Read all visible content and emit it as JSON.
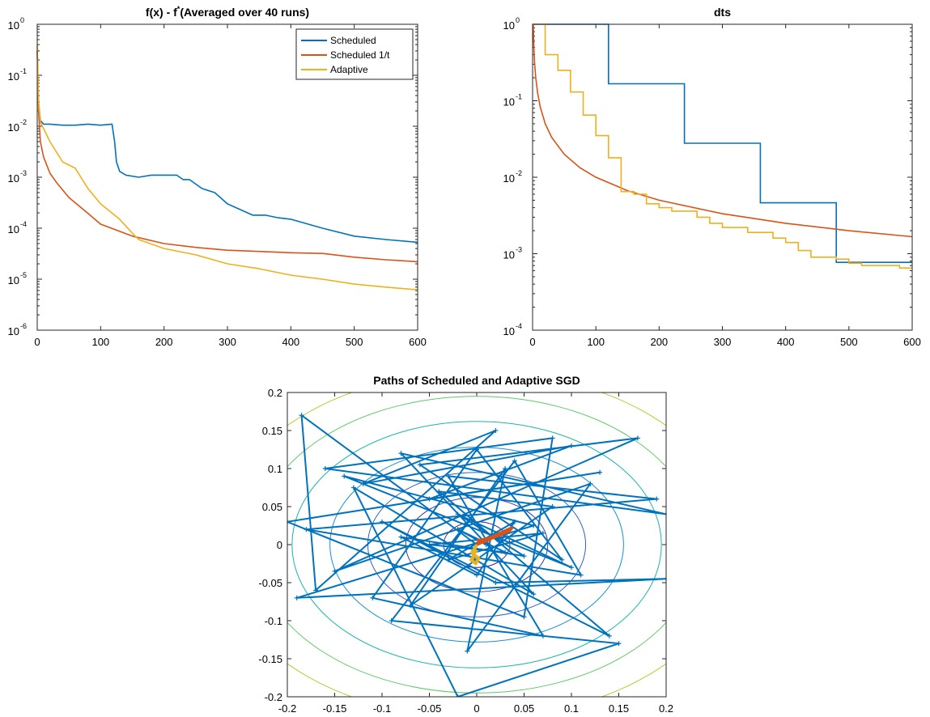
{
  "chart_data": [
    {
      "type": "line",
      "title": "f(x) - f*(Averaged over 40 runs)",
      "title_parts": {
        "main": "f(x) - f",
        "superscript": "*",
        "tail": "(Averaged over 40 runs)"
      },
      "xlim": [
        0,
        600
      ],
      "ylim": [
        1e-06,
        1
      ],
      "yscale": "log",
      "xticks": [
        "0",
        "100",
        "200",
        "300",
        "400",
        "500",
        "600"
      ],
      "yticks": [
        {
          "base": "10",
          "exp": "-6"
        },
        {
          "base": "10",
          "exp": "-5"
        },
        {
          "base": "10",
          "exp": "-4"
        },
        {
          "base": "10",
          "exp": "-3"
        },
        {
          "base": "10",
          "exp": "-2"
        },
        {
          "base": "10",
          "exp": "-1"
        },
        {
          "base": "10",
          "exp": "0"
        }
      ],
      "grid": false,
      "legend_position": "top-right",
      "series": [
        {
          "name": "Scheduled",
          "color": "#0072BD",
          "x": [
            0,
            2,
            5,
            10,
            20,
            40,
            60,
            80,
            100,
            118,
            122,
            125,
            130,
            140,
            160,
            180,
            200,
            220,
            230,
            240,
            260,
            280,
            300,
            340,
            360,
            380,
            400,
            450,
            500,
            550,
            600
          ],
          "y": [
            0.3,
            0.03,
            0.013,
            0.011,
            0.011,
            0.0105,
            0.0105,
            0.011,
            0.0105,
            0.011,
            0.005,
            0.002,
            0.0013,
            0.0011,
            0.001,
            0.0011,
            0.0011,
            0.0011,
            0.0009,
            0.0009,
            0.0006,
            0.0005,
            0.0003,
            0.00018,
            0.00018,
            0.00016,
            0.00015,
            0.0001,
            7e-05,
            6e-05,
            5.3e-05
          ]
        },
        {
          "name": "Scheduled 1/t",
          "color": "#D95319",
          "x": [
            0,
            2,
            5,
            10,
            20,
            30,
            50,
            75,
            100,
            150,
            200,
            250,
            300,
            350,
            400,
            450,
            500,
            550,
            600
          ],
          "y": [
            0.3,
            0.02,
            0.005,
            0.0025,
            0.0012,
            0.0008,
            0.0004,
            0.00022,
            0.00012,
            7e-05,
            5e-05,
            4.2e-05,
            3.7e-05,
            3.5e-05,
            3.3e-05,
            3.2e-05,
            2.7e-05,
            2.4e-05,
            2.2e-05
          ]
        },
        {
          "name": "Adaptive",
          "color": "#EDB120",
          "x": [
            0,
            2,
            5,
            10,
            20,
            40,
            60,
            80,
            100,
            130,
            150,
            160,
            200,
            250,
            300,
            350,
            400,
            450,
            500,
            550,
            600
          ],
          "y": [
            0.4,
            0.03,
            0.012,
            0.009,
            0.005,
            0.002,
            0.0015,
            0.0006,
            0.0003,
            0.00015,
            8e-05,
            6e-05,
            4e-05,
            3e-05,
            2e-05,
            1.6e-05,
            1.2e-05,
            1e-05,
            8e-06,
            7e-06,
            6.2e-06
          ]
        }
      ]
    },
    {
      "type": "line",
      "title": "dts",
      "xlim": [
        0,
        600
      ],
      "ylim": [
        0.0001,
        1
      ],
      "yscale": "log",
      "xticks": [
        "0",
        "100",
        "200",
        "300",
        "400",
        "500",
        "600"
      ],
      "yticks": [
        {
          "base": "10",
          "exp": "-4"
        },
        {
          "base": "10",
          "exp": "-3"
        },
        {
          "base": "10",
          "exp": "-2"
        },
        {
          "base": "10",
          "exp": "-1"
        },
        {
          "base": "10",
          "exp": "0"
        }
      ],
      "grid": false,
      "series": [
        {
          "color": "#0072BD",
          "step": true,
          "x": [
            0,
            120,
            120,
            240,
            240,
            360,
            360,
            480,
            480,
            600
          ],
          "y": [
            1,
            1,
            0.167,
            0.167,
            0.0278,
            0.0278,
            0.00463,
            0.00463,
            0.00077,
            0.00077
          ]
        },
        {
          "color": "#D95319",
          "curve": "1/t",
          "x": [
            1,
            2,
            3,
            5,
            8,
            12,
            20,
            30,
            50,
            75,
            100,
            150,
            200,
            300,
            400,
            500,
            600
          ],
          "y": [
            1,
            0.5,
            0.333,
            0.2,
            0.125,
            0.0833,
            0.05,
            0.0333,
            0.02,
            0.0133,
            0.01,
            0.00667,
            0.005,
            0.00333,
            0.0025,
            0.002,
            0.00167
          ]
        },
        {
          "color": "#EDB120",
          "step": true,
          "x": [
            0,
            20,
            20,
            40,
            40,
            60,
            60,
            80,
            80,
            100,
            100,
            120,
            120,
            140,
            140,
            160,
            160,
            180,
            180,
            200,
            200,
            220,
            220,
            260,
            260,
            280,
            280,
            300,
            300,
            340,
            340,
            380,
            380,
            400,
            400,
            420,
            420,
            440,
            440,
            480,
            480,
            500,
            500,
            520,
            520,
            580,
            580,
            600
          ],
          "y": [
            1,
            1,
            0.4,
            0.4,
            0.25,
            0.25,
            0.13,
            0.13,
            0.065,
            0.065,
            0.035,
            0.035,
            0.018,
            0.018,
            0.0065,
            0.0065,
            0.006,
            0.006,
            0.0045,
            0.0045,
            0.004,
            0.004,
            0.0036,
            0.0036,
            0.003,
            0.003,
            0.0025,
            0.0025,
            0.0022,
            0.0022,
            0.0019,
            0.0019,
            0.0016,
            0.0016,
            0.0014,
            0.0014,
            0.0011,
            0.0011,
            0.0009,
            0.0009,
            0.00085,
            0.00085,
            0.00075,
            0.00075,
            0.0007,
            0.0007,
            0.00065,
            0.00065
          ]
        }
      ]
    },
    {
      "type": "scatter",
      "title": "Paths of Scheduled and Adaptive SGD",
      "xlim": [
        -0.2,
        0.2
      ],
      "ylim": [
        -0.2,
        0.2
      ],
      "xticks": [
        "-0.2",
        "-0.15",
        "-0.1",
        "-0.05",
        "0",
        "0.05",
        "0.1",
        "0.15",
        "0.2"
      ],
      "yticks": [
        "-0.2",
        "-0.15",
        "-0.1",
        "-0.05",
        "0",
        "0.05",
        "0.1",
        "0.15",
        "0.2"
      ],
      "grid": false,
      "contours": [
        {
          "rx": 0.035,
          "ry": 0.03,
          "color": "#3b1f8c"
        },
        {
          "rx": 0.075,
          "ry": 0.062,
          "color": "#3a36a8"
        },
        {
          "rx": 0.115,
          "ry": 0.095,
          "color": "#3160c7"
        },
        {
          "rx": 0.155,
          "ry": 0.128,
          "color": "#1b8fd0"
        },
        {
          "rx": 0.195,
          "ry": 0.162,
          "color": "#1bb5a8"
        },
        {
          "rx": 0.235,
          "ry": 0.195,
          "color": "#5ec86a"
        },
        {
          "rx": 0.275,
          "ry": 0.228,
          "color": "#b8c93a"
        },
        {
          "rx": 0.315,
          "ry": 0.262,
          "color": "#e8c02e"
        }
      ],
      "series": [
        {
          "name": "Scheduled",
          "color": "#0072BD",
          "x": [
            0.0,
            -0.185,
            -0.17,
            0.02,
            -0.12,
            0.1,
            -0.05,
            0.13,
            -0.2,
            0.05,
            0.08,
            -0.16,
            0.2,
            -0.08,
            0.06,
            -0.13,
            -0.02,
            0.15,
            -0.09,
            0.04,
            0.11,
            -0.18,
            0.19,
            -0.03,
            0.07,
            -0.11,
            0.0,
            0.09,
            -0.06,
            0.17,
            -0.15,
            0.12,
            -0.01,
            0.03,
            -0.07,
            0.08,
            -0.04,
            0.14,
            -0.1,
            0.02,
            0.2,
            -0.19,
            0.06,
            -0.14,
            0.1,
            -0.02,
            0.05,
            -0.08,
            0.0,
            0.04,
            -0.03,
            0.07,
            -0.05,
            0.03,
            -0.02,
            0.01
          ],
          "y": [
            0.0,
            0.17,
            -0.06,
            0.15,
            0.08,
            0.13,
            0.06,
            0.095,
            0.03,
            -0.095,
            0.14,
            0.1,
            0.04,
            0.12,
            -0.065,
            0.075,
            -0.2,
            -0.13,
            -0.1,
            0.11,
            -0.04,
            0.02,
            0.06,
            0.09,
            -0.12,
            -0.07,
            0.125,
            -0.02,
            0.105,
            0.14,
            -0.035,
            0.08,
            -0.14,
            0.1,
            -0.08,
            0.05,
            0.07,
            -0.12,
            0.03,
            -0.05,
            -0.045,
            -0.07,
            0.025,
            0.09,
            -0.03,
            0.04,
            -0.015,
            0.01,
            -0.04,
            0.03,
            -0.02,
            0.015,
            0.0,
            -0.01,
            0.02,
            0.0
          ]
        },
        {
          "name": "Scheduled 1/t",
          "color": "#D95319",
          "x": [
            0.0,
            0.005,
            0.01,
            0.015,
            0.02,
            0.025,
            0.03,
            0.035,
            0.037,
            0.03,
            0.02,
            0.01,
            0.0
          ],
          "y": [
            0.0,
            0.003,
            0.005,
            0.008,
            0.011,
            0.013,
            0.016,
            0.019,
            0.022,
            0.018,
            0.012,
            0.007,
            0.005
          ]
        },
        {
          "name": "Adaptive",
          "color": "#EDB120",
          "x": [
            0.0,
            -0.002,
            -0.005,
            -0.003,
            -0.006,
            -0.001,
            0.002,
            -0.004,
            0.0
          ],
          "y": [
            0.0,
            -0.005,
            -0.01,
            -0.015,
            -0.02,
            -0.025,
            -0.018,
            -0.012,
            -0.008
          ]
        }
      ]
    }
  ]
}
